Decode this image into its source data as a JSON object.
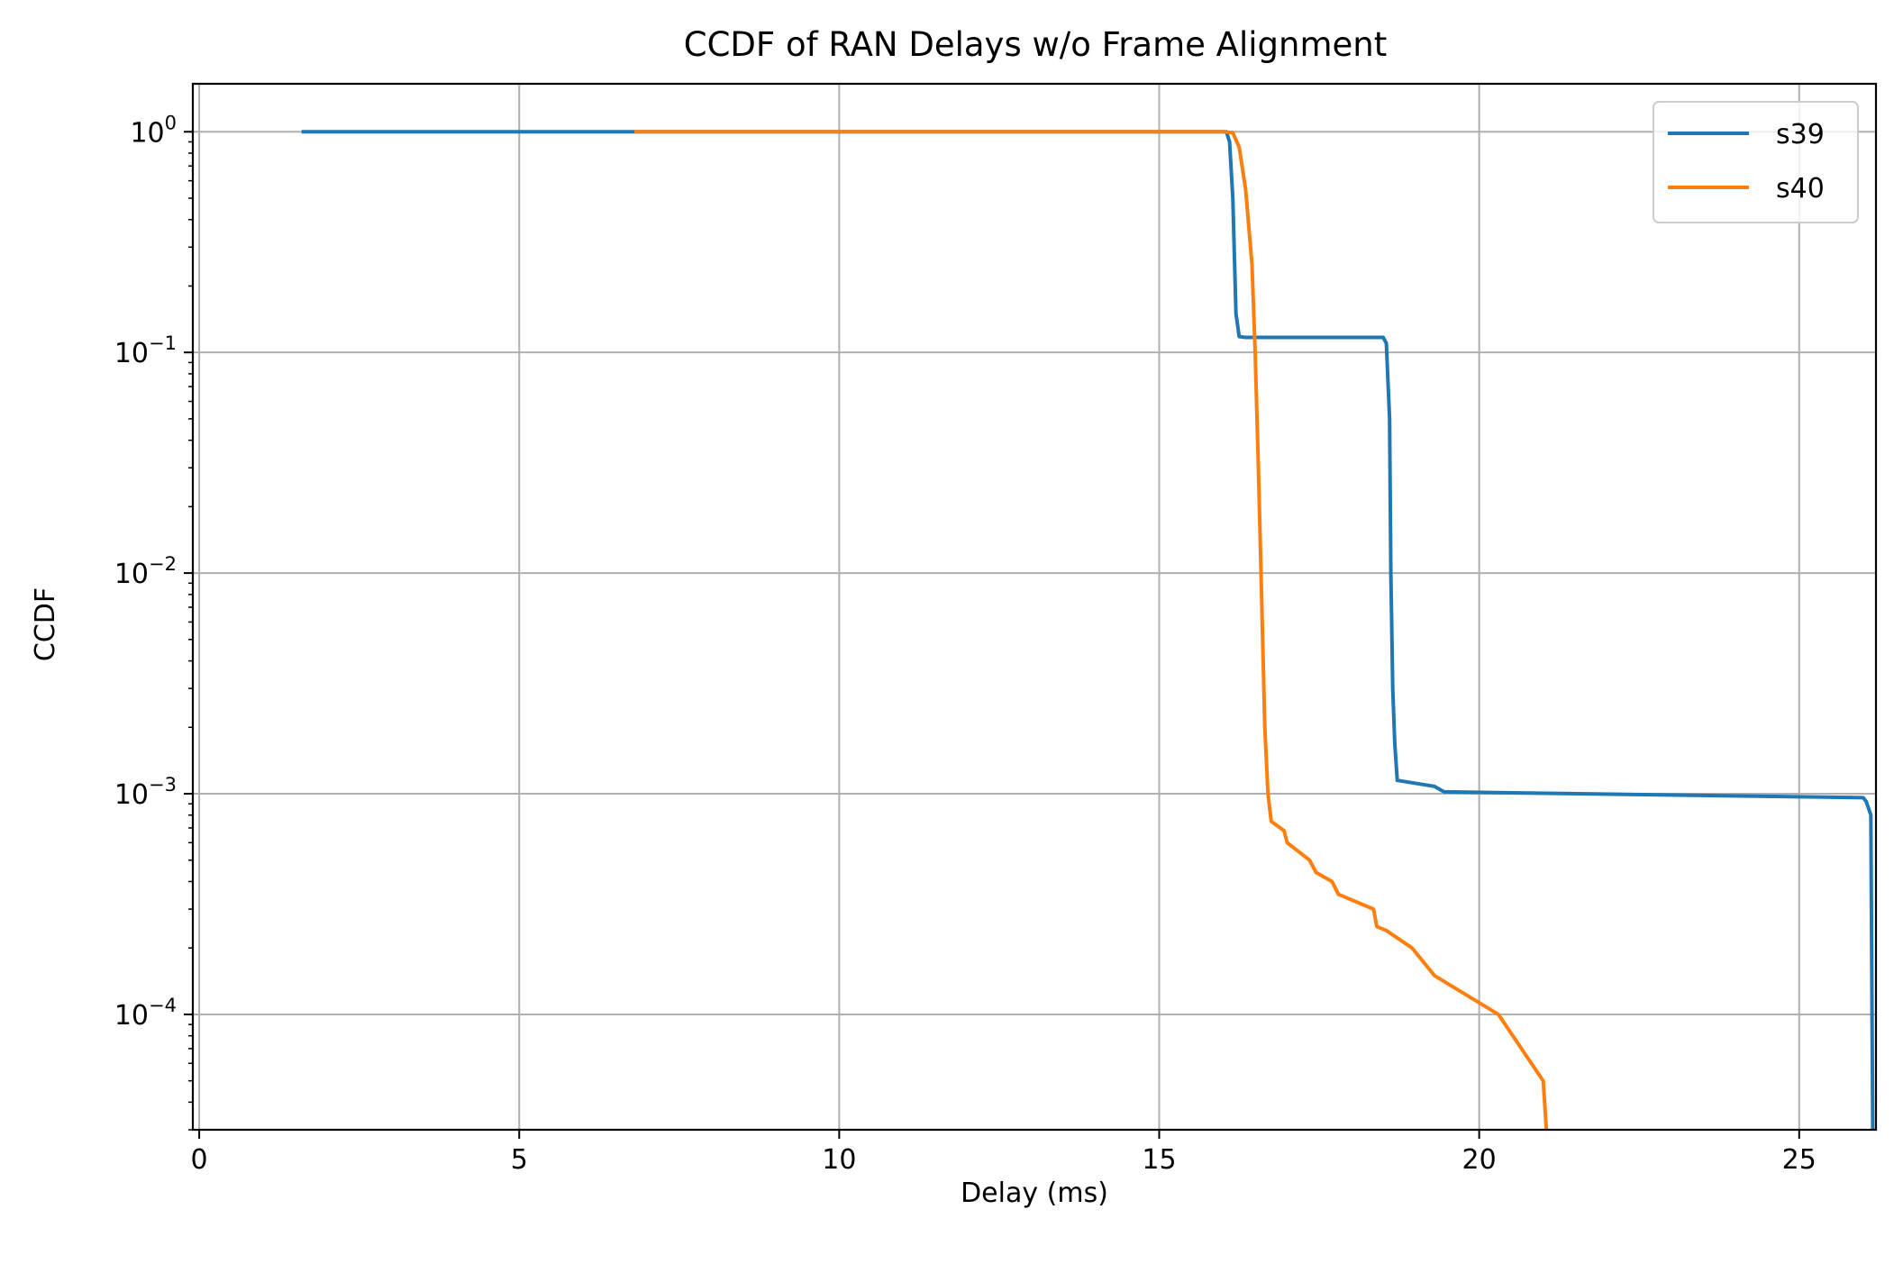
{
  "chart_data": {
    "type": "line",
    "title": "CCDF of RAN Delays w/o Frame Alignment",
    "xlabel": "Delay (ms)",
    "ylabel": "CCDF",
    "xlim": [
      -0.1,
      26.2
    ],
    "ylim": [
      3e-05,
      1.65
    ],
    "yscale": "log",
    "grid": true,
    "legend_position": "top-right",
    "x_ticks": [
      0,
      5,
      10,
      15,
      20,
      25
    ],
    "x_tick_labels": [
      "0",
      "5",
      "10",
      "15",
      "20",
      "25"
    ],
    "y_ticks": [
      1,
      0.1,
      0.01,
      0.001,
      0.0001
    ],
    "y_tick_labels": [
      {
        "base": "10",
        "exp": "0"
      },
      {
        "base": "10",
        "exp": "−1"
      },
      {
        "base": "10",
        "exp": "−2"
      },
      {
        "base": "10",
        "exp": "−3"
      },
      {
        "base": "10",
        "exp": "−4"
      }
    ],
    "series": [
      {
        "name": "s39",
        "color": "#1f77b4",
        "points": [
          [
            1.6,
            1.0
          ],
          [
            16.05,
            1.0
          ],
          [
            16.1,
            0.9
          ],
          [
            16.15,
            0.5
          ],
          [
            16.2,
            0.15
          ],
          [
            16.25,
            0.118
          ],
          [
            16.35,
            0.117
          ],
          [
            18.5,
            0.117
          ],
          [
            18.55,
            0.11
          ],
          [
            18.6,
            0.05
          ],
          [
            18.62,
            0.01
          ],
          [
            18.65,
            0.003
          ],
          [
            18.68,
            0.0017
          ],
          [
            18.72,
            0.00115
          ],
          [
            19.3,
            0.00108
          ],
          [
            19.45,
            0.00102
          ],
          [
            26.0,
            0.00096
          ],
          [
            26.05,
            0.00092
          ],
          [
            26.12,
            0.0008
          ],
          [
            26.15,
            3e-05
          ]
        ]
      },
      {
        "name": "s40",
        "color": "#ff7f0e",
        "points": [
          [
            6.8,
            1.0
          ],
          [
            16.0,
            1.0
          ],
          [
            16.15,
            0.99
          ],
          [
            16.25,
            0.85
          ],
          [
            16.35,
            0.55
          ],
          [
            16.45,
            0.25
          ],
          [
            16.5,
            0.1
          ],
          [
            16.55,
            0.03
          ],
          [
            16.6,
            0.008
          ],
          [
            16.65,
            0.002
          ],
          [
            16.7,
            0.001
          ],
          [
            16.75,
            0.00075
          ],
          [
            16.95,
            0.00068
          ],
          [
            17.0,
            0.0006
          ],
          [
            17.35,
            0.0005
          ],
          [
            17.45,
            0.00044
          ],
          [
            17.7,
            0.0004
          ],
          [
            17.8,
            0.00035
          ],
          [
            18.35,
            0.0003
          ],
          [
            18.4,
            0.00025
          ],
          [
            18.55,
            0.00024
          ],
          [
            18.95,
            0.0002
          ],
          [
            19.3,
            0.00015
          ],
          [
            20.3,
            0.0001
          ],
          [
            21.0,
            5e-05
          ],
          [
            21.05,
            3e-05
          ]
        ]
      }
    ]
  }
}
